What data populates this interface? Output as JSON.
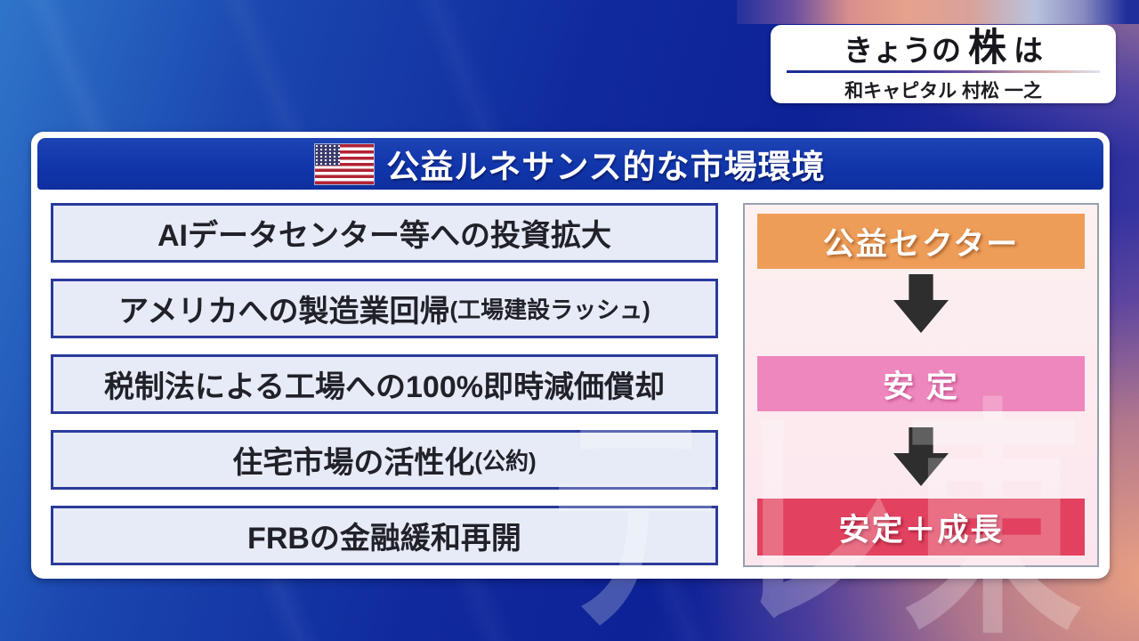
{
  "program_badge": {
    "title_prefix": "きょうの",
    "title_emphasis": "株",
    "title_suffix": "は",
    "presenter": "和キャピタル 村松 一之"
  },
  "board": {
    "title": "公益ルネサンス的な市場環境",
    "title_icon": "us-flag-icon",
    "factors": [
      {
        "main": "AIデータセンター等への投資拡大",
        "note": ""
      },
      {
        "main": "アメリカへの製造業回帰",
        "note": "(工場建設ラッシュ)"
      },
      {
        "main": "税制法による工場への100%即時減価償却",
        "note": ""
      },
      {
        "main": "住宅市場の活性化",
        "note": "(公約)"
      },
      {
        "main": "FRBの金融緩和再開",
        "note": ""
      }
    ],
    "flow": {
      "steps": [
        {
          "label": "公益セクター",
          "color": "#ee9d58"
        },
        {
          "label": "安 定",
          "color": "#ee87bd"
        },
        {
          "label": "安定＋成長",
          "color": "#e2425f"
        }
      ],
      "arrow_color": "#2e2e2e"
    }
  },
  "watermark": "テレ東",
  "colors": {
    "titlebar_blue": "#1136ab",
    "factor_box_fill": "#e7ebf7",
    "factor_box_border": "#2b3a9b",
    "flow_panel_pink": "#fbe6ee",
    "background_light_blue": "#2f75ca",
    "background_navy": "#0d2296",
    "background_salmon": "#eca388"
  }
}
